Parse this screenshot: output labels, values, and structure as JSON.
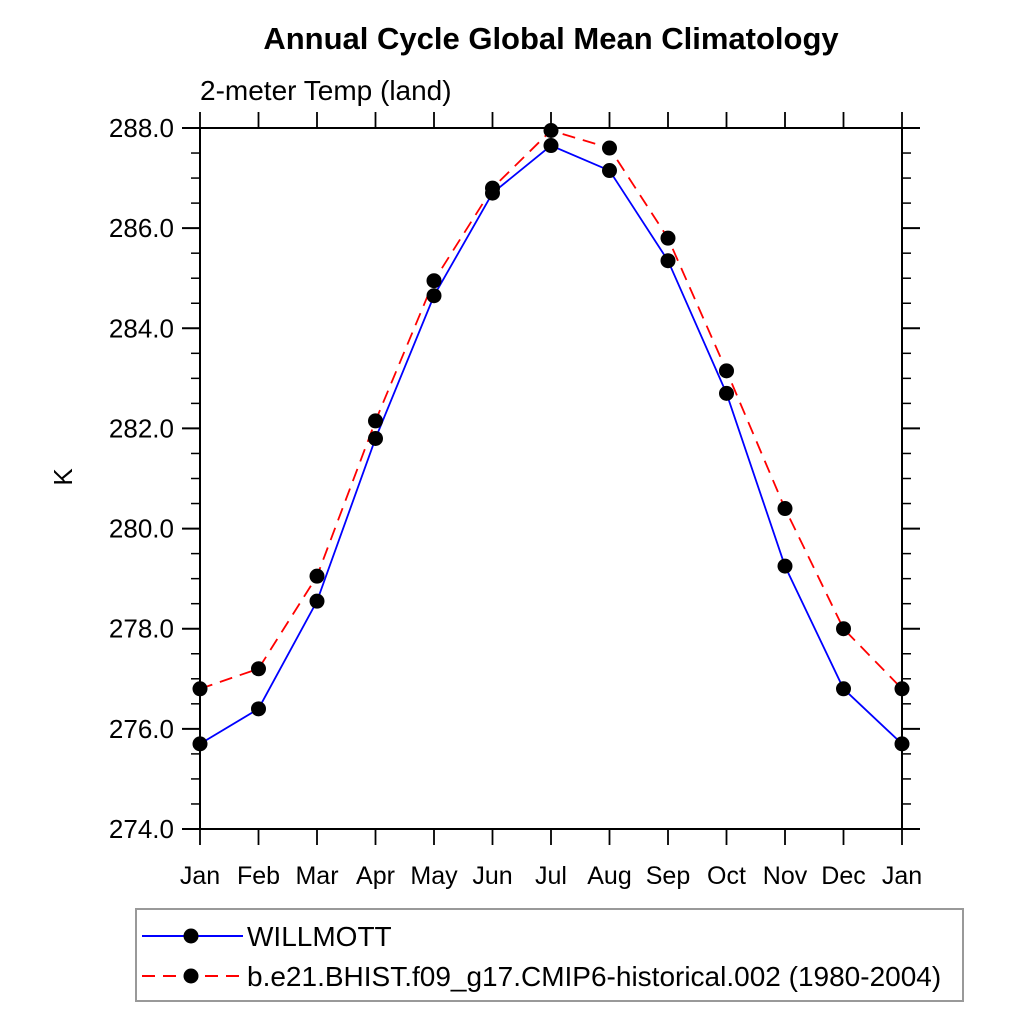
{
  "chart_data": {
    "type": "line",
    "title": "Annual Cycle Global Mean Climatology",
    "subtitle": "2-meter Temp (land)",
    "ylabel": "K",
    "categories": [
      "Jan",
      "Feb",
      "Mar",
      "Apr",
      "May",
      "Jun",
      "Jul",
      "Aug",
      "Sep",
      "Oct",
      "Nov",
      "Dec",
      "Jan"
    ],
    "ylim": [
      274.0,
      288.0
    ],
    "y_major_step": 2.0,
    "y_minor_step": 0.5,
    "y_tick_label_format": "one_decimal",
    "grid": false,
    "legend_position": "bottom-left",
    "axis_color": "#000000",
    "series": [
      {
        "name": "WILLMOTT",
        "color": "#0000ff",
        "line_style": "solid",
        "marker": "filled-circle",
        "marker_color": "#000000",
        "values": [
          275.7,
          276.4,
          278.55,
          281.8,
          284.65,
          286.7,
          287.65,
          287.15,
          285.35,
          282.7,
          279.25,
          276.8,
          275.7
        ]
      },
      {
        "name": "b.e21.BHIST.f09_g17.CMIP6-historical.002 (1980-2004)",
        "color": "#ff0000",
        "line_style": "dashed",
        "marker": "filled-circle",
        "marker_color": "#000000",
        "values": [
          276.8,
          277.2,
          279.05,
          282.15,
          284.95,
          286.8,
          287.95,
          287.6,
          285.8,
          283.15,
          280.4,
          278.0,
          276.8
        ]
      }
    ]
  }
}
